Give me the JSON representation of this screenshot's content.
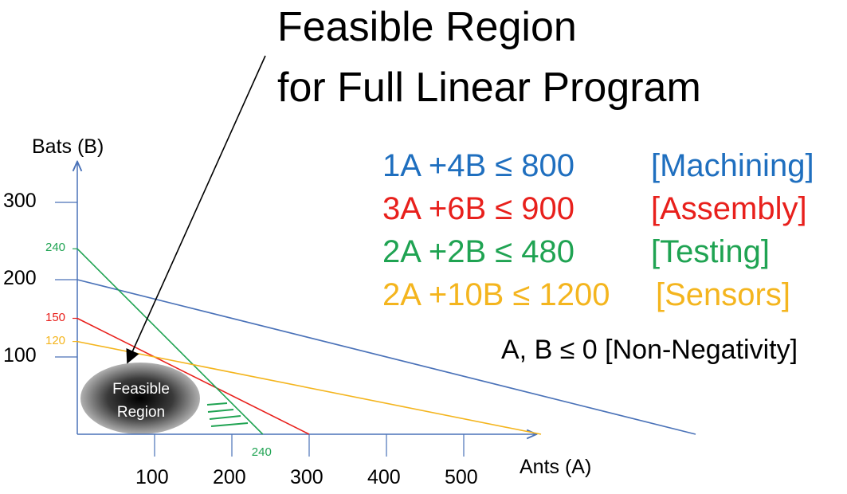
{
  "title": {
    "line1": "Feasible Region",
    "line2": "for Full Linear Program"
  },
  "constraints": [
    {
      "expr": "1A +4B ≤ 800",
      "label": "[Machining]",
      "color": "#1f6fbf"
    },
    {
      "expr": "3A +6B ≤ 900",
      "label": "[Assembly]",
      "color": "#e8201c"
    },
    {
      "expr": "2A +2B ≤ 480",
      "label": "[Testing]",
      "color": "#1fa352"
    },
    {
      "expr": "2A +10B ≤ 1200",
      "label": "[Sensors]",
      "color": "#f4b51e"
    }
  ],
  "non_negativity": "A, B ≤ 0 [Non-Negativity]",
  "region_label": {
    "line1": "Feasible",
    "line2": "Region"
  },
  "chart_data": {
    "type": "line",
    "xlabel": "Ants (A)",
    "ylabel": "Bats (B)",
    "x_ticks": [
      "100",
      "200",
      "300",
      "400",
      "500"
    ],
    "y_ticks": [
      "100",
      "200",
      "300"
    ],
    "series": [
      {
        "name": "[Machining]",
        "color": "#4a72b8",
        "points": [
          [
            0,
            200
          ],
          [
            800,
            0
          ]
        ]
      },
      {
        "name": "[Assembly]",
        "color": "#e8201c",
        "points": [
          [
            0,
            150
          ],
          [
            300,
            0
          ]
        ]
      },
      {
        "name": "[Testing]",
        "color": "#1fa352",
        "points": [
          [
            0,
            240
          ],
          [
            240,
            0
          ]
        ]
      },
      {
        "name": "[Sensors]",
        "color": "#f4b51e",
        "points": [
          [
            0,
            120
          ],
          [
            600,
            0
          ]
        ]
      }
    ],
    "intercept_labels": [
      {
        "text": "240",
        "axis": "y",
        "color": "#1fa352"
      },
      {
        "text": "150",
        "axis": "y",
        "color": "#e8201c"
      },
      {
        "text": "120",
        "axis": "y",
        "color": "#f4b51e"
      },
      {
        "text": "240",
        "axis": "x",
        "color": "#1fa352"
      }
    ],
    "annotation": "Feasible Region",
    "axis_color": "#4a72b8"
  }
}
